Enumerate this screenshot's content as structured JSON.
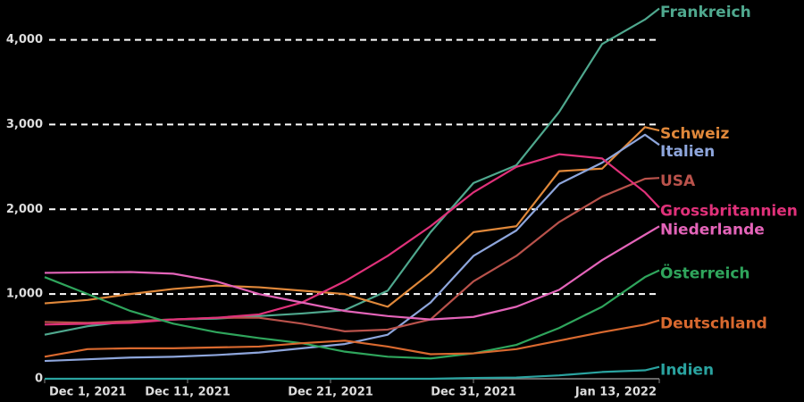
{
  "chart_data": {
    "type": "line",
    "x": [
      "2021-12-01",
      "2021-12-04",
      "2021-12-07",
      "2021-12-10",
      "2021-12-13",
      "2021-12-16",
      "2021-12-19",
      "2021-12-22",
      "2021-12-25",
      "2021-12-28",
      "2021-12-31",
      "2022-01-03",
      "2022-01-06",
      "2022-01-09",
      "2022-01-12",
      "2022-01-13"
    ],
    "xticks": [
      {
        "value": "2021-12-01",
        "label": "Dec 1, 2021"
      },
      {
        "value": "2021-12-11",
        "label": "Dec 11, 2021"
      },
      {
        "value": "2021-12-21",
        "label": "Dec 21, 2021"
      },
      {
        "value": "2021-12-31",
        "label": "Dec 31, 2021"
      },
      {
        "value": "2022-01-13",
        "label": "Jan 13, 2022"
      }
    ],
    "ylim": [
      0,
      4470
    ],
    "yticks": [
      0,
      {
        "value": 1000,
        "label": "1,000"
      },
      {
        "value": 2000,
        "label": "2,000"
      },
      {
        "value": 3000,
        "label": "3,000"
      },
      {
        "value": 4000,
        "label": "4,000"
      }
    ],
    "grid": true,
    "series": [
      {
        "name": "Frankreich",
        "color": "#4fa88e",
        "values": [
          520,
          620,
          680,
          700,
          710,
          740,
          770,
          810,
          1040,
          1730,
          2310,
          2520,
          3150,
          3950,
          4240,
          4370
        ]
      },
      {
        "name": "Schweiz",
        "color": "#e0883a",
        "values": [
          890,
          930,
          1000,
          1060,
          1100,
          1080,
          1040,
          1000,
          850,
          1250,
          1730,
          1800,
          2450,
          2480,
          2970,
          2930
        ]
      },
      {
        "name": "Italien",
        "color": "#8ea6dc",
        "values": [
          210,
          230,
          250,
          260,
          280,
          310,
          360,
          410,
          520,
          900,
          1450,
          1750,
          2300,
          2550,
          2880,
          2760
        ]
      },
      {
        "name": "USA",
        "color": "#b9524b",
        "values": [
          670,
          660,
          680,
          700,
          720,
          720,
          650,
          560,
          580,
          700,
          1150,
          1450,
          1850,
          2150,
          2360,
          2370
        ]
      },
      {
        "name": "Grossbritannien",
        "color": "#e0317a",
        "values": [
          640,
          650,
          660,
          700,
          720,
          760,
          900,
          1150,
          1450,
          1800,
          2200,
          2500,
          2650,
          2600,
          2200,
          2020
        ]
      },
      {
        "name": "Niederlande",
        "color": "#e464b9",
        "values": [
          1250,
          1255,
          1260,
          1240,
          1150,
          1000,
          900,
          800,
          740,
          700,
          730,
          850,
          1050,
          1400,
          1700,
          1800
        ]
      },
      {
        "name": "Österreich",
        "color": "#2fa55c",
        "values": [
          1200,
          1000,
          800,
          650,
          550,
          480,
          420,
          320,
          260,
          240,
          300,
          400,
          600,
          850,
          1200,
          1280
        ]
      },
      {
        "name": "Deutschland",
        "color": "#d9692f",
        "values": [
          260,
          350,
          360,
          360,
          370,
          380,
          420,
          450,
          380,
          290,
          300,
          350,
          450,
          550,
          640,
          690
        ]
      },
      {
        "name": "Indien",
        "color": "#2aa3a0",
        "values": [
          0,
          0,
          0,
          0,
          0,
          0,
          0,
          0,
          0,
          0,
          10,
          15,
          40,
          80,
          100,
          140
        ]
      }
    ]
  }
}
